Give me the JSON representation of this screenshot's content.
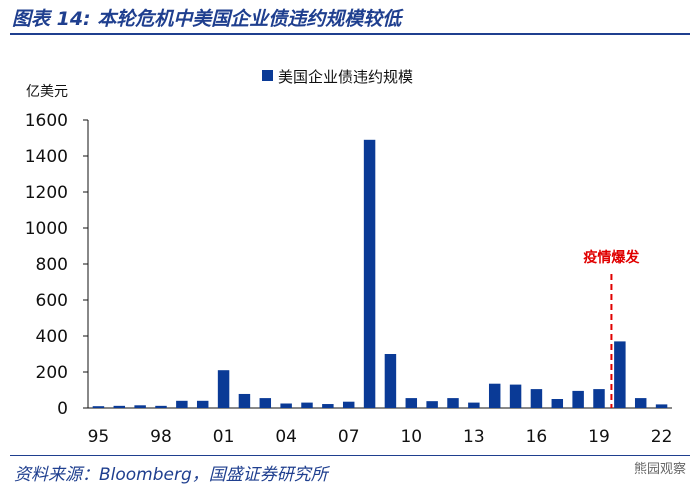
{
  "title": "图表 14:  本轮危机中美国企业债违约规模较低",
  "source": "资料来源：Bloomberg，国盛证券研究所",
  "watermark": "熊园观察",
  "colors": {
    "bar": "#0a3a96",
    "title": "#1f3f8f",
    "annotation": "#e00000"
  },
  "chart_data": {
    "type": "bar",
    "title": "",
    "unit_label": "亿美元",
    "legend": "美国企业债违约规模",
    "legend_position": "top",
    "categories": [
      "95",
      "96",
      "97",
      "98",
      "99",
      "00",
      "01",
      "02",
      "03",
      "04",
      "05",
      "06",
      "07",
      "08",
      "09",
      "10",
      "11",
      "12",
      "13",
      "14",
      "15",
      "16",
      "17",
      "18",
      "19",
      "20",
      "21",
      "22"
    ],
    "x_tick_labels": [
      "95",
      "98",
      "01",
      "04",
      "07",
      "10",
      "13",
      "16",
      "19",
      "22"
    ],
    "series": [
      {
        "name": "美国企业债违约规模",
        "values": [
          10,
          12,
          15,
          12,
          40,
          40,
          210,
          78,
          55,
          25,
          30,
          22,
          35,
          1490,
          300,
          55,
          38,
          55,
          30,
          135,
          130,
          105,
          50,
          95,
          105,
          370,
          55,
          20
        ]
      }
    ],
    "ylim": [
      0,
      1600
    ],
    "yticks": [
      0,
      200,
      400,
      600,
      800,
      1000,
      1200,
      1400,
      1600
    ],
    "annotation": {
      "text": "疫情爆发",
      "after_category": "19"
    },
    "grid": false
  }
}
